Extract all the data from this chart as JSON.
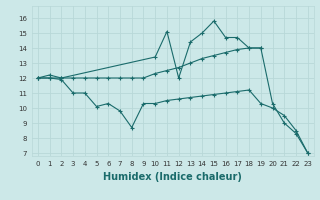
{
  "xlabel": "Humidex (Indice chaleur)",
  "bg_color": "#cce8e8",
  "grid_color": "#b8d8d8",
  "line_color": "#1a6b6b",
  "xlim": [
    -0.5,
    23.5
  ],
  "ylim": [
    6.8,
    16.8
  ],
  "xticks": [
    0,
    1,
    2,
    3,
    4,
    5,
    6,
    7,
    8,
    9,
    10,
    11,
    12,
    13,
    14,
    15,
    16,
    17,
    18,
    19,
    20,
    21,
    22,
    23
  ],
  "yticks": [
    7,
    8,
    9,
    10,
    11,
    12,
    13,
    14,
    15,
    16
  ],
  "curve_max": {
    "x": [
      0,
      1,
      2,
      10,
      11,
      12,
      13,
      14,
      15,
      16,
      17,
      18,
      19,
      20,
      21,
      22,
      23
    ],
    "y": [
      12.0,
      12.2,
      12.0,
      13.4,
      15.1,
      12.0,
      14.4,
      15.0,
      15.8,
      14.7,
      14.7,
      14.0,
      14.0,
      10.3,
      9.0,
      8.3,
      7.0
    ]
  },
  "curve_mean": {
    "x": [
      0,
      1,
      2,
      3,
      4,
      5,
      6,
      7,
      8,
      9,
      10,
      11,
      12,
      13,
      14,
      15,
      16,
      17,
      18,
      19
    ],
    "y": [
      12.0,
      12.0,
      12.0,
      12.0,
      12.0,
      12.0,
      12.0,
      12.0,
      12.0,
      12.0,
      12.3,
      12.5,
      12.7,
      13.0,
      13.3,
      13.5,
      13.7,
      13.9,
      14.0,
      14.0
    ]
  },
  "curve_min": {
    "x": [
      0,
      1,
      2,
      3,
      4,
      5,
      6,
      7,
      8,
      9,
      10,
      11,
      12,
      13,
      14,
      15,
      16,
      17,
      18,
      19,
      20,
      21,
      22,
      23
    ],
    "y": [
      12.0,
      12.0,
      11.9,
      11.0,
      11.0,
      10.1,
      10.3,
      9.8,
      8.7,
      10.3,
      10.3,
      10.5,
      10.6,
      10.7,
      10.8,
      10.9,
      11.0,
      11.1,
      11.2,
      10.3,
      10.0,
      9.5,
      8.5,
      7.0
    ]
  },
  "marker": "+",
  "markersize": 3,
  "linewidth": 0.8,
  "tick_fontsize": 5,
  "xlabel_fontsize": 7
}
